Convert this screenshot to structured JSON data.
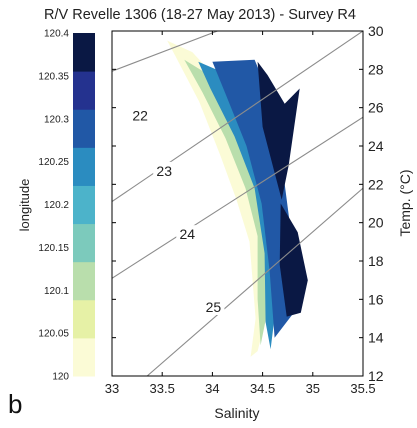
{
  "chart_data": {
    "type": "scatter",
    "title": "R/V Revelle 1306 (18-27 May 2013) - Survey R4",
    "panel_label": "b",
    "xlabel": "Salinity",
    "ylabel": "Temp. (°C)",
    "colorbar_label": "longitude",
    "xlim": [
      33,
      35.5
    ],
    "ylim": [
      12,
      30
    ],
    "xticks": [
      "33",
      "33.5",
      "34",
      "34.5",
      "35",
      "35.5"
    ],
    "yticks": [
      "12",
      "14",
      "16",
      "18",
      "20",
      "22",
      "24",
      "26",
      "28",
      "30"
    ],
    "grid": false,
    "colorbar": {
      "range": [
        120,
        120.4
      ],
      "ticks": [
        "120",
        "120.05",
        "120.1",
        "120.15",
        "120.2",
        "120.25",
        "120.3",
        "120.35",
        "120.4"
      ],
      "colors": [
        "#fbfbd6",
        "#e6f1a6",
        "#b9deac",
        "#7ccabc",
        "#4cb3ca",
        "#2b8cc0",
        "#2158a6",
        "#24328f",
        "#0a1844"
      ]
    },
    "isopycnals": [
      {
        "label": "22",
        "points": [
          [
            33,
            27.9
          ],
          [
            34.8,
            31.5
          ]
        ],
        "label_at": [
          33.28,
          25.6
        ]
      },
      {
        "label": "23",
        "points": [
          [
            33,
            21.1
          ],
          [
            35.5,
            30
          ]
        ],
        "label_at": [
          33.52,
          22.7
        ]
      },
      {
        "label": "24",
        "points": [
          [
            33,
            17.1
          ],
          [
            35.5,
            25.5
          ]
        ],
        "label_at": [
          33.75,
          19.4
        ]
      },
      {
        "label": "25",
        "points": [
          [
            33.35,
            12
          ],
          [
            35.5,
            21.8
          ]
        ],
        "label_at": [
          34.01,
          15.6
        ]
      }
    ],
    "regions": [
      {
        "longitude": 120.02,
        "outline": [
          [
            33.55,
            29.5
          ],
          [
            33.8,
            28.9
          ],
          [
            34.03,
            27.6
          ],
          [
            34.2,
            26.0
          ],
          [
            34.33,
            24.6
          ],
          [
            34.45,
            22.0
          ],
          [
            34.55,
            20.0
          ],
          [
            34.6,
            18.3
          ],
          [
            34.56,
            15.6
          ],
          [
            34.45,
            13.3
          ],
          [
            34.38,
            13.0
          ],
          [
            34.43,
            15.0
          ],
          [
            34.37,
            19.0
          ],
          [
            34.24,
            21.2
          ],
          [
            34.08,
            23.5
          ],
          [
            33.87,
            26.3
          ],
          [
            33.63,
            28.7
          ]
        ]
      },
      {
        "longitude": 120.12,
        "outline": [
          [
            33.72,
            28.5
          ],
          [
            34.06,
            27.4
          ],
          [
            34.26,
            25.5
          ],
          [
            34.42,
            23.0
          ],
          [
            34.55,
            20.6
          ],
          [
            34.6,
            18.5
          ],
          [
            34.58,
            16.2
          ],
          [
            34.48,
            13.6
          ],
          [
            34.45,
            16.0
          ],
          [
            34.45,
            19.3
          ],
          [
            34.33,
            21.8
          ],
          [
            34.13,
            24.4
          ],
          [
            33.9,
            26.8
          ]
        ]
      },
      {
        "longitude": 120.24,
        "outline": [
          [
            33.86,
            28.4
          ],
          [
            34.3,
            27.4
          ],
          [
            34.55,
            24.0
          ],
          [
            34.64,
            20.4
          ],
          [
            34.66,
            16.8
          ],
          [
            34.58,
            13.4
          ],
          [
            34.53,
            14.8
          ],
          [
            34.52,
            18.4
          ],
          [
            34.42,
            21.8
          ],
          [
            34.22,
            24.5
          ],
          [
            33.98,
            27.0
          ]
        ]
      },
      {
        "longitude": 120.3,
        "outline": [
          [
            34.0,
            28.4
          ],
          [
            34.42,
            28.5
          ],
          [
            34.58,
            26.5
          ],
          [
            34.72,
            22.0
          ],
          [
            34.82,
            18.0
          ],
          [
            34.84,
            15.5
          ],
          [
            34.62,
            14.0
          ],
          [
            34.57,
            17.5
          ],
          [
            34.49,
            21.0
          ],
          [
            34.34,
            24.0
          ],
          [
            34.14,
            26.6
          ]
        ]
      },
      {
        "longitude": 120.36,
        "outline": [
          [
            34.45,
            28.4
          ],
          [
            34.55,
            27.7
          ],
          [
            34.72,
            26.2
          ],
          [
            34.87,
            27.0
          ],
          [
            34.76,
            23.0
          ],
          [
            34.69,
            21.2
          ],
          [
            34.62,
            22.6
          ],
          [
            34.5,
            25.0
          ]
        ]
      },
      {
        "longitude": 120.4,
        "outline": [
          [
            34.68,
            21.0
          ],
          [
            34.85,
            19.5
          ],
          [
            34.95,
            17.0
          ],
          [
            34.88,
            15.3
          ],
          [
            34.74,
            15.1
          ],
          [
            34.67,
            17.8
          ]
        ]
      }
    ]
  }
}
